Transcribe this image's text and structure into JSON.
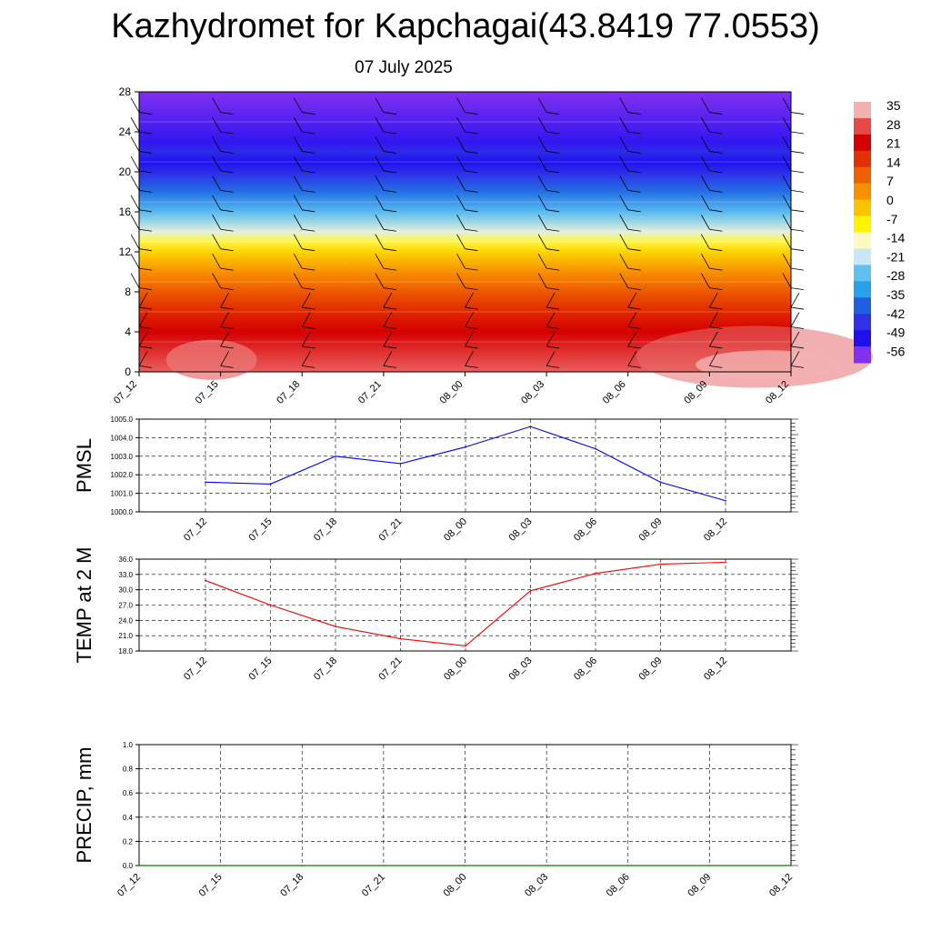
{
  "title": "Kazhydromet for Kapchagai(43.8419 77.0553)",
  "subtitle": "07 July 2025",
  "chart_data": [
    {
      "type": "heatmap",
      "name": "temperature-profile",
      "x_ticks": [
        "07_12",
        "07_15",
        "07_18",
        "07_21",
        "08_00",
        "08_03",
        "08_06",
        "08_09",
        "08_12"
      ],
      "y_ticks": [
        0,
        4,
        8,
        12,
        16,
        20,
        24,
        28
      ],
      "ylim": [
        0,
        28
      ],
      "colorbar": {
        "labels": [
          "35",
          "28",
          "21",
          "14",
          "7",
          "0",
          "-7",
          "-14",
          "-21",
          "-28",
          "-35",
          "-42",
          "-49",
          "-56"
        ],
        "colors": [
          "#f2b2b2",
          "#e84848",
          "#d40000",
          "#e23000",
          "#f06000",
          "#f89000",
          "#fcc400",
          "#fff400",
          "#fff8c0",
          "#c8e8f8",
          "#60c0f0",
          "#2aa0ec",
          "#2060e0",
          "#3030e8",
          "#2010f0",
          "#8030f0"
        ]
      },
      "layers": [
        {
          "h": 0,
          "t": 31
        },
        {
          "h": 2,
          "t": 28
        },
        {
          "h": 4,
          "t": 24
        },
        {
          "h": 6,
          "t": 19
        },
        {
          "h": 8,
          "t": 13
        },
        {
          "h": 10,
          "t": 6
        },
        {
          "h": 12,
          "t": -2
        },
        {
          "h": 13,
          "t": -8
        },
        {
          "h": 14,
          "t": -15
        },
        {
          "h": 16,
          "t": -26
        },
        {
          "h": 18,
          "t": -38
        },
        {
          "h": 20,
          "t": -48
        },
        {
          "h": 21,
          "t": -53
        },
        {
          "h": 22,
          "t": -48
        },
        {
          "h": 23,
          "t": -54
        },
        {
          "h": 28,
          "t": -58
        }
      ],
      "wind_barb_columns": 9
    },
    {
      "type": "line",
      "name": "pmsl",
      "ylabel": "PMSL",
      "categories": [
        "07_12",
        "07_15",
        "07_18",
        "07_21",
        "08_00",
        "08_03",
        "08_06",
        "08_09",
        "08_12"
      ],
      "values": [
        1001.6,
        1001.5,
        1003.0,
        1002.6,
        1003.5,
        1004.6,
        1003.4,
        1001.6,
        1000.6
      ],
      "ylim": [
        1000.0,
        1005.0
      ],
      "y_ticks": [
        "1000.0",
        "1001.0",
        "1002.0",
        "1003.0",
        "1004.0",
        "1005.0"
      ],
      "color": "#0000ff",
      "grid": true
    },
    {
      "type": "line",
      "name": "temp-2m",
      "ylabel": "TEMP at 2 M",
      "categories": [
        "07_12",
        "07_15",
        "07_18",
        "07_21",
        "08_00",
        "08_03",
        "08_06",
        "08_09",
        "08_12"
      ],
      "values": [
        31.8,
        27.0,
        22.8,
        20.4,
        19.0,
        29.8,
        33.2,
        35.0,
        35.4
      ],
      "ylim": [
        18.0,
        36.0
      ],
      "y_ticks": [
        "18.0",
        "21.0",
        "24.0",
        "27.0",
        "30.0",
        "33.0",
        "36.0"
      ],
      "color": "#ff0000",
      "grid": true
    },
    {
      "type": "line",
      "name": "precip",
      "ylabel": "PRECIP, mm",
      "categories": [
        "07_12",
        "07_15",
        "07_18",
        "07_21",
        "08_00",
        "08_03",
        "08_06",
        "08_09",
        "08_12"
      ],
      "values": [
        0,
        0,
        0,
        0,
        0,
        0,
        0,
        0,
        0
      ],
      "ylim": [
        0.0,
        1.0
      ],
      "y_ticks": [
        "0.0",
        "0.2",
        "0.4",
        "0.6",
        "0.8",
        "1.0"
      ],
      "color": "#008000",
      "grid": true
    }
  ]
}
